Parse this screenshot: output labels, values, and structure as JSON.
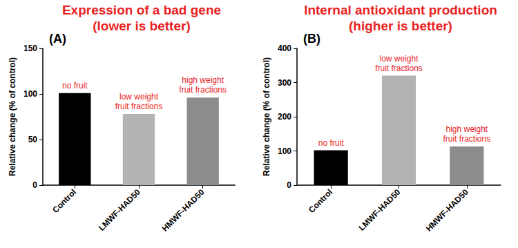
{
  "chart_data": [
    {
      "type": "bar",
      "title": "Expression of a bad gene",
      "subtitle": "(lower is better)",
      "label": "(A)",
      "ylabel": "Relative change (% of control)",
      "categories": [
        "Control",
        "LMWF-HAD50",
        "HMWF-HAD50"
      ],
      "values": [
        101,
        78,
        96
      ],
      "annotations": [
        "no fruit",
        "low weight\nfruit fractions",
        "high weight\nfruit fractions"
      ],
      "colors": [
        "#000000",
        "#b3b3b3",
        "#8c8c8c"
      ],
      "ylim": [
        0,
        150
      ],
      "yticks": [
        0,
        50,
        100,
        150
      ],
      "grid": false
    },
    {
      "type": "bar",
      "title": "Internal antioxidant production",
      "subtitle": "(higher is better)",
      "label": "(B)",
      "ylabel": "Relative change (% of control)",
      "categories": [
        "Control",
        "LMWF-HAD50",
        "HMWF-HAD50"
      ],
      "values": [
        102,
        320,
        113
      ],
      "annotations": [
        "no fruit",
        "low weight\nfruit fractions",
        "high weight\nfruit fractions"
      ],
      "colors": [
        "#000000",
        "#b3b3b3",
        "#8c8c8c"
      ],
      "ylim": [
        0,
        400
      ],
      "yticks": [
        0,
        100,
        200,
        300,
        400
      ],
      "grid": false
    }
  ]
}
